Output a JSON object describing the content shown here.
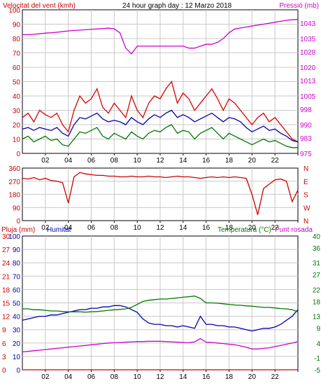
{
  "header": {
    "wind_title": "Velocitat del vent (kmh)",
    "graph_title": "24 hour graph day : 12 Marzo 2018",
    "pressure_title": "Pressió (mb)"
  },
  "labels": {
    "rain": "Pluja (mm)",
    "humidity": "Humitat",
    "temperature": "Temperatura (°C)",
    "dewpoint": "Punt rosada"
  },
  "colors": {
    "wind_gust": "#dd0000",
    "wind_avg": "#0000aa",
    "wind_low": "#007700",
    "pressure": "#cc00cc",
    "direction": "#cc0000",
    "rain": "#cc0000",
    "humidity": "#0000aa",
    "temperature": "#007700",
    "dewpoint": "#cc00cc",
    "axis_left": "#cc0000",
    "axis_right": "#cc00cc",
    "grid": "#c8c8c8",
    "frame": "#000000"
  },
  "chart_data": [
    {
      "type": "line",
      "title": "24 hour graph day : 12 Marzo 2018",
      "xlabel": "",
      "ylabel": "Velocitat del vent (kmh)",
      "y2label": "Pressió (mb)",
      "x_ticks": [
        "02",
        "04",
        "06",
        "08",
        "10",
        "12",
        "14",
        "16",
        "18",
        "20",
        "22",
        ""
      ],
      "y_ticks": [
        "0",
        "10",
        "20",
        "30",
        "40",
        "50",
        "60",
        "70",
        "80",
        "90",
        "100"
      ],
      "ylim": [
        0,
        100
      ],
      "y2_ticks": [
        "975",
        "983",
        "990",
        "998",
        "1005",
        "1013",
        "1020",
        "1028",
        "1035",
        "1043"
      ],
      "y2lim": [
        975,
        1050
      ],
      "grid": true,
      "hours": [
        0,
        0.5,
        1,
        1.5,
        2,
        2.5,
        3,
        3.5,
        4,
        4.5,
        5,
        5.5,
        6,
        6.5,
        7,
        7.5,
        8,
        8.5,
        9,
        9.5,
        10,
        10.5,
        11,
        11.5,
        12,
        12.5,
        13,
        13.5,
        14,
        14.5,
        15,
        15.5,
        16,
        16.5,
        17,
        17.5,
        18,
        18.5,
        19,
        19.5,
        20,
        20.5,
        21,
        21.5,
        22,
        22.5,
        23,
        23.5,
        24
      ],
      "series": [
        {
          "name": "gust",
          "color": "wind_gust",
          "values": [
            25,
            28,
            22,
            30,
            27,
            25,
            28,
            20,
            15,
            30,
            40,
            35,
            38,
            45,
            32,
            28,
            35,
            30,
            25,
            40,
            30,
            25,
            35,
            40,
            38,
            45,
            50,
            35,
            42,
            38,
            30,
            35,
            40,
            45,
            38,
            30,
            38,
            35,
            30,
            25,
            20,
            25,
            28,
            22,
            25,
            20,
            15,
            10,
            8
          ]
        },
        {
          "name": "avg",
          "color": "wind_avg",
          "values": [
            17,
            18,
            16,
            18,
            17,
            16,
            18,
            14,
            12,
            20,
            25,
            24,
            26,
            28,
            24,
            22,
            23,
            22,
            20,
            25,
            22,
            20,
            24,
            27,
            25,
            28,
            30,
            25,
            27,
            25,
            22,
            24,
            26,
            28,
            25,
            22,
            25,
            24,
            22,
            18,
            15,
            17,
            19,
            16,
            17,
            14,
            12,
            9,
            8
          ]
        },
        {
          "name": "low",
          "color": "wind_low",
          "values": [
            10,
            12,
            8,
            10,
            12,
            9,
            10,
            6,
            5,
            10,
            15,
            14,
            16,
            18,
            12,
            10,
            14,
            12,
            10,
            15,
            12,
            10,
            14,
            16,
            15,
            18,
            20,
            14,
            16,
            15,
            10,
            14,
            16,
            18,
            14,
            10,
            14,
            12,
            10,
            8,
            6,
            8,
            10,
            8,
            9,
            7,
            5,
            4,
            4
          ]
        },
        {
          "name": "pressure",
          "color": "pressure",
          "axis": "right",
          "values": [
            1037,
            1037,
            1037.2,
            1037.5,
            1037.8,
            1038,
            1038.3,
            1038.6,
            1039,
            1039.2,
            1039.4,
            1039.6,
            1039.8,
            1040,
            1040.2,
            1040.4,
            1040,
            1038,
            1030,
            1027,
            1031,
            1031,
            1031,
            1031,
            1031,
            1031,
            1031,
            1031,
            1031,
            1030,
            1030,
            1031,
            1032,
            1032,
            1033,
            1035,
            1038,
            1040,
            1040.5,
            1041,
            1041.5,
            1042,
            1042.5,
            1043,
            1043.5,
            1044,
            1044.5,
            1044.8,
            1045
          ]
        }
      ]
    },
    {
      "type": "line",
      "ylabel_ticks": [
        "N",
        "W",
        "S",
        "E",
        "N"
      ],
      "y_ticks": [
        "0",
        "90",
        "180",
        "270",
        "360"
      ],
      "ylim": [
        0,
        360
      ],
      "x_ticks": [
        "02",
        "04",
        "06",
        "08",
        "10",
        "12",
        "14",
        "16",
        "18",
        "20",
        "22",
        ""
      ],
      "grid": true,
      "hours": [
        0,
        0.5,
        1,
        1.5,
        2,
        2.5,
        3,
        3.5,
        4,
        4.5,
        5,
        5.5,
        6,
        6.5,
        7,
        7.5,
        8,
        8.5,
        9,
        9.5,
        10,
        10.5,
        11,
        11.5,
        12,
        12.5,
        13,
        13.5,
        14,
        14.5,
        15,
        15.5,
        16,
        16.5,
        17,
        17.5,
        18,
        18.5,
        19,
        19.5,
        20,
        20.5,
        21,
        21.5,
        22,
        22.5,
        23,
        23.5,
        24
      ],
      "series": [
        {
          "name": "direction",
          "color": "direction",
          "values": [
            290,
            285,
            295,
            280,
            290,
            275,
            270,
            260,
            120,
            300,
            330,
            320,
            315,
            310,
            310,
            305,
            305,
            300,
            300,
            305,
            300,
            300,
            305,
            300,
            300,
            295,
            300,
            305,
            300,
            300,
            295,
            290,
            295,
            300,
            295,
            300,
            295,
            300,
            295,
            290,
            180,
            40,
            220,
            250,
            280,
            285,
            270,
            130,
            210
          ]
        }
      ]
    },
    {
      "type": "line",
      "y_ticks": [
        "0",
        "10",
        "20",
        "30",
        "40",
        "50",
        "60",
        "70",
        "80",
        "90",
        "100"
      ],
      "ylim": [
        0,
        100
      ],
      "y_left2_ticks": [
        "0",
        "3",
        "6",
        "9",
        "12",
        "15",
        "18",
        "21",
        "24",
        "27",
        "30"
      ],
      "y2_ticks": [
        "-5",
        "-1",
        "4",
        "9",
        "13",
        "18",
        "22",
        "27",
        "31",
        "36",
        "40"
      ],
      "y2lim": [
        -5,
        40
      ],
      "x_ticks": [
        "02",
        "04",
        "06",
        "08",
        "10",
        "12",
        "14",
        "16",
        "18",
        "20",
        "22",
        ""
      ],
      "grid": true,
      "hours": [
        0,
        0.5,
        1,
        1.5,
        2,
        2.5,
        3,
        3.5,
        4,
        4.5,
        5,
        5.5,
        6,
        6.5,
        7,
        7.5,
        8,
        8.5,
        9,
        9.5,
        10,
        10.5,
        11,
        11.5,
        12,
        12.5,
        13,
        13.5,
        14,
        14.5,
        15,
        15.5,
        16,
        16.5,
        17,
        17.5,
        18,
        18.5,
        19,
        19.5,
        20,
        20.5,
        21,
        21.5,
        22,
        22.5,
        23,
        23.5,
        24
      ],
      "series": [
        {
          "name": "rain",
          "color": "rain",
          "axis": "left2",
          "values": [
            0,
            0,
            0,
            0,
            0,
            0,
            0,
            0,
            0,
            0,
            0,
            0,
            0,
            0,
            0,
            0,
            0,
            0,
            0,
            0,
            0,
            0,
            0,
            0,
            0,
            0,
            0,
            0,
            0,
            0,
            0,
            0,
            0,
            0,
            0,
            0,
            0,
            0,
            0,
            0,
            0,
            0,
            0,
            0,
            0,
            0,
            0,
            0,
            0
          ]
        },
        {
          "name": "humidity",
          "color": "humidity",
          "values": [
            37,
            38,
            39,
            40,
            40,
            41,
            41,
            42,
            43,
            44,
            45,
            45,
            46,
            46,
            47,
            47,
            48,
            48,
            47,
            45,
            43,
            38,
            35,
            34,
            34,
            33,
            33,
            32,
            33,
            32,
            31,
            40,
            34,
            34,
            33,
            33,
            32,
            32,
            31,
            30,
            29,
            30,
            31,
            31,
            32,
            34,
            37,
            40,
            45
          ]
        },
        {
          "name": "temperature",
          "color": "temperature",
          "axis": "right",
          "values": [
            15.5,
            15.5,
            15.2,
            15.2,
            15.0,
            14.8,
            14.8,
            14.6,
            14.5,
            14.5,
            14.5,
            14.4,
            14.5,
            14.6,
            14.8,
            15.0,
            15.2,
            15.3,
            15.5,
            16.0,
            17.0,
            18.0,
            18.4,
            18.6,
            18.8,
            18.8,
            19.0,
            19.2,
            19.4,
            19.6,
            19.8,
            19.0,
            17.5,
            17.5,
            17.4,
            17.2,
            17.0,
            16.8,
            16.7,
            16.5,
            16.4,
            16.2,
            16.0,
            16.0,
            15.8,
            15.6,
            15.5,
            15.2,
            14.5
          ]
        },
        {
          "name": "dewpoint",
          "color": "dewpoint",
          "axis": "right",
          "values": [
            1.0,
            1.2,
            1.4,
            1.6,
            1.8,
            2.0,
            2.2,
            2.4,
            2.6,
            2.8,
            3.0,
            3.2,
            3.4,
            3.6,
            3.8,
            4.0,
            4.1,
            4.2,
            4.3,
            4.4,
            4.5,
            4.5,
            4.6,
            4.6,
            4.6,
            4.5,
            4.4,
            4.3,
            4.2,
            4.1,
            4.4,
            5.5,
            4.3,
            4.2,
            4.0,
            3.8,
            3.6,
            3.4,
            3.0,
            2.6,
            2.0,
            2.0,
            2.2,
            2.4,
            2.8,
            3.2,
            3.6,
            4.0,
            4.5
          ]
        }
      ]
    }
  ]
}
